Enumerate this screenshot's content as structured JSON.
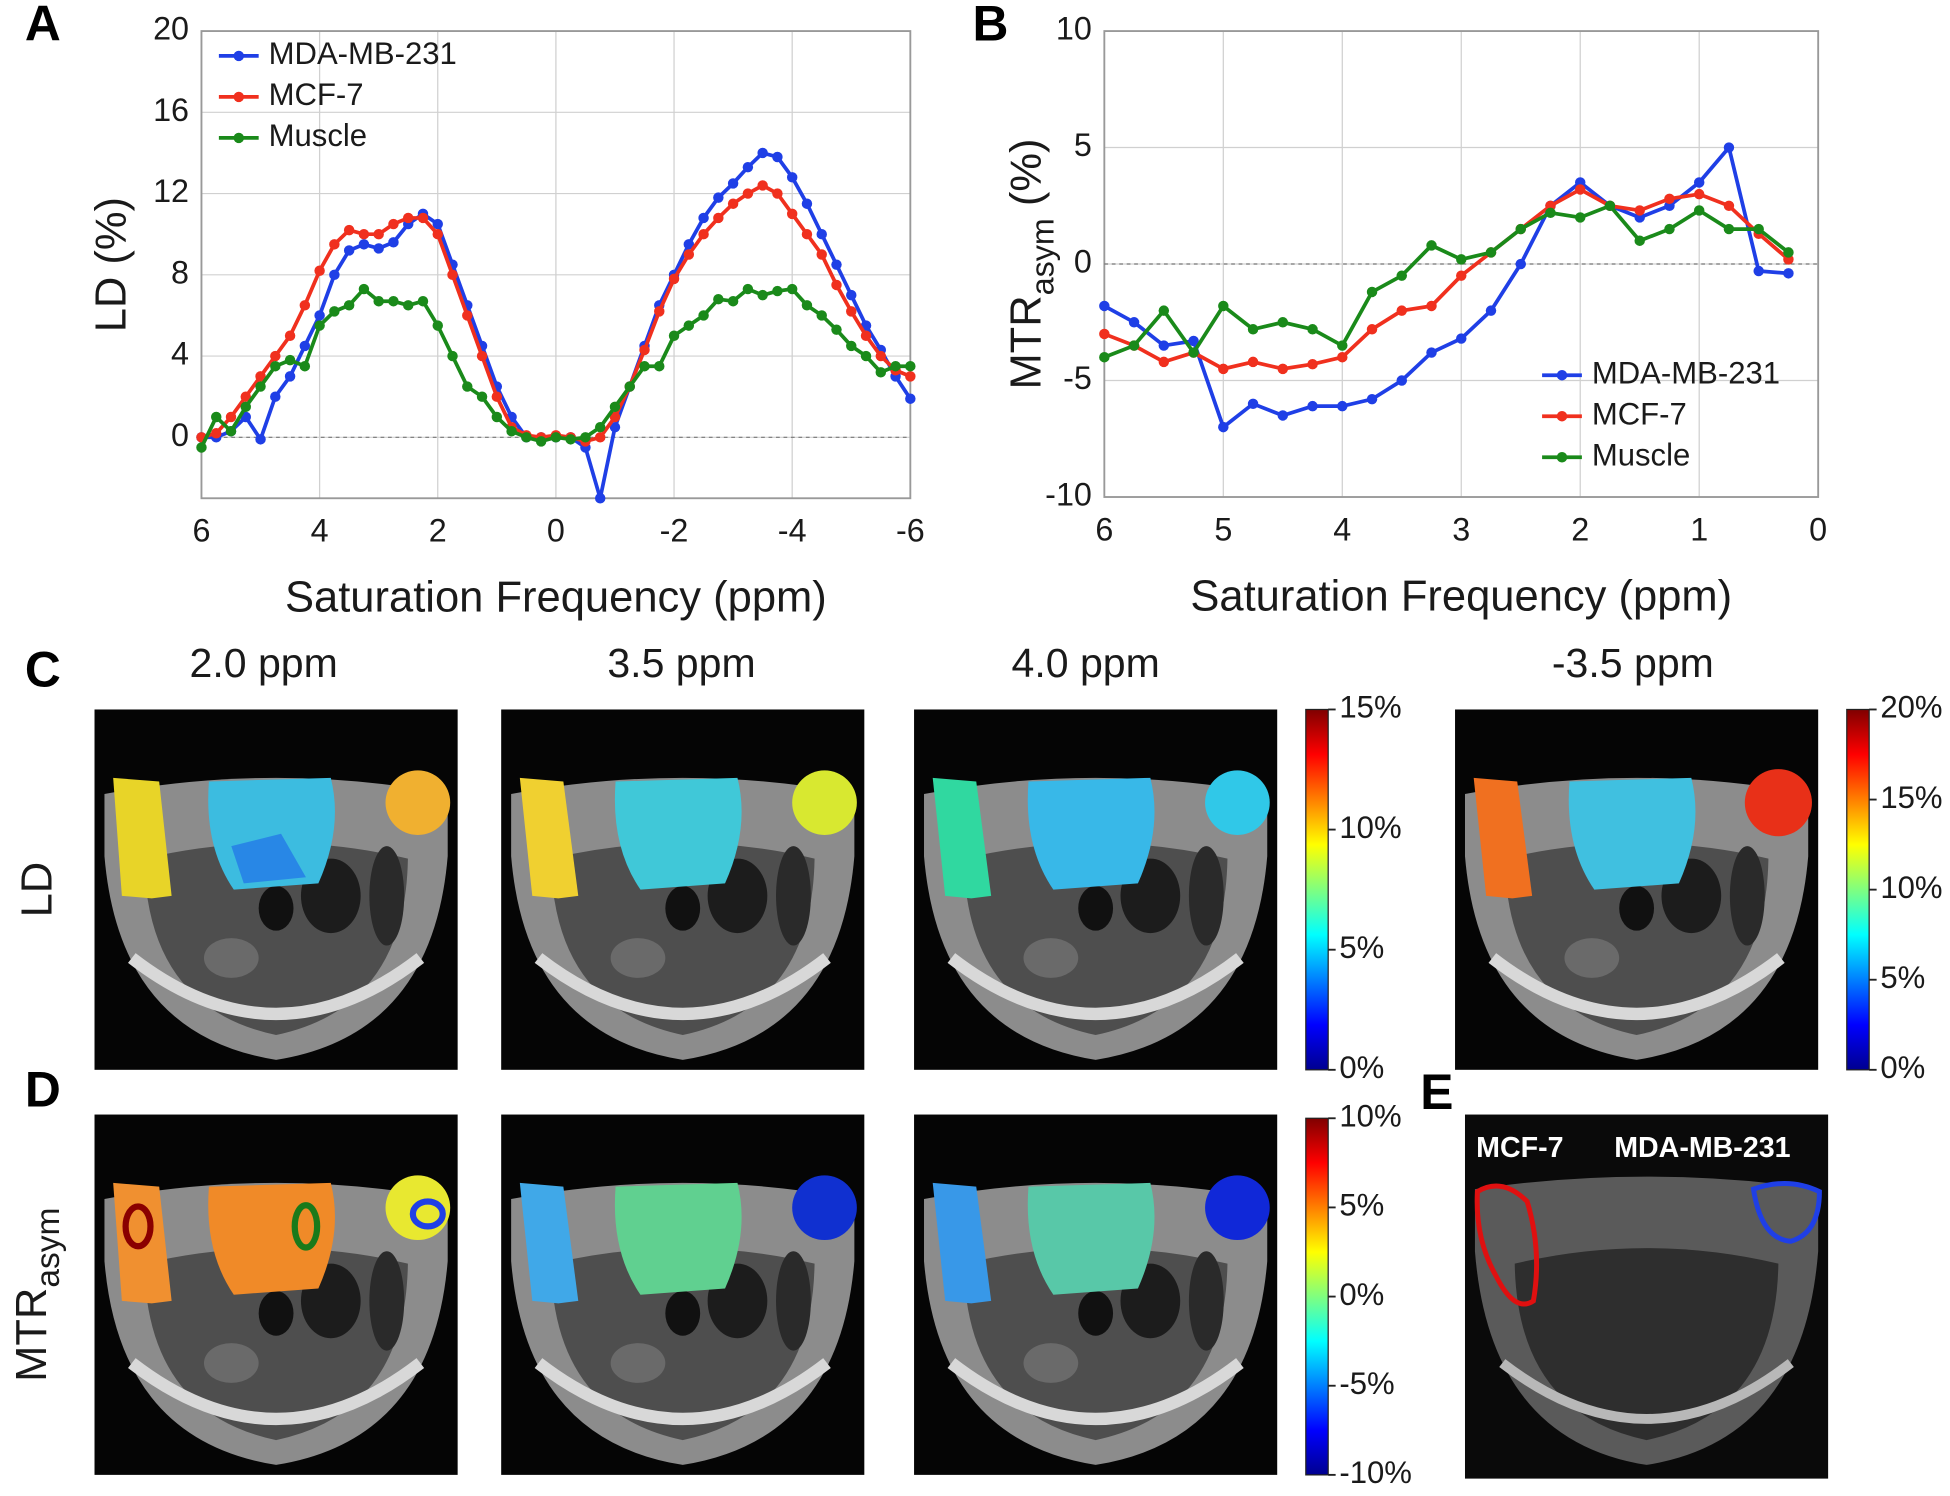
{
  "panel_labels": [
    "A",
    "B",
    "C",
    "D",
    "E"
  ],
  "chart_data": [
    {
      "type": "line",
      "xlabel": "Saturation Frequency (ppm)",
      "ylabel": "LD (%)",
      "xlim": [
        6,
        -6
      ],
      "xticks": [
        6,
        4,
        2,
        0,
        -2,
        -4,
        -6
      ],
      "ylim": [
        -3,
        20
      ],
      "yticks": [
        0,
        4,
        8,
        12,
        16,
        20
      ],
      "grid": true,
      "legend": "upper left",
      "x": [
        6,
        5.75,
        5.5,
        5.25,
        5,
        4.75,
        4.5,
        4.25,
        4,
        3.75,
        3.5,
        3.25,
        3,
        2.75,
        2.5,
        2.25,
        2,
        1.75,
        1.5,
        1.25,
        1,
        0.75,
        0.5,
        0.25,
        0,
        -0.25,
        -0.5,
        -0.75,
        -1,
        -1.25,
        -1.5,
        -1.75,
        -2,
        -2.25,
        -2.5,
        -2.75,
        -3,
        -3.25,
        -3.5,
        -3.75,
        -4,
        -4.25,
        -4.5,
        -4.75,
        -5,
        -5.25,
        -5.5,
        -5.75,
        -6
      ],
      "series": [
        {
          "name": "MDA-MB-231",
          "color": "#1f3fe6",
          "values": [
            0,
            0,
            0.3,
            1,
            -0.1,
            2,
            3,
            4.5,
            6,
            8,
            9.2,
            9.5,
            9.3,
            9.6,
            10.5,
            11,
            10.5,
            8.5,
            6.5,
            4.5,
            2.5,
            1,
            0,
            0,
            0,
            0,
            -0.5,
            -3,
            0.5,
            2.5,
            4.5,
            6.5,
            8,
            9.5,
            10.8,
            11.8,
            12.5,
            13.3,
            14,
            13.8,
            12.8,
            11.5,
            10,
            8.5,
            7,
            5.5,
            4.3,
            3,
            1.9
          ]
        },
        {
          "name": "MCF-7",
          "color": "#f0301e",
          "values": [
            0,
            0.2,
            1,
            2,
            3,
            4,
            5,
            6.5,
            8.2,
            9.5,
            10.2,
            10,
            10,
            10.5,
            10.8,
            10.8,
            10,
            8,
            6,
            4,
            2,
            0.5,
            0.1,
            0,
            0.1,
            0,
            -0.2,
            0,
            1,
            2.5,
            4.3,
            6.2,
            7.8,
            9,
            10,
            10.8,
            11.5,
            12,
            12.4,
            12,
            11,
            10,
            9,
            7.5,
            6.2,
            5,
            4,
            3.3,
            3
          ]
        },
        {
          "name": "Muscle",
          "color": "#1a8a1a",
          "values": [
            -0.5,
            1,
            0.3,
            1.5,
            2.5,
            3.5,
            3.8,
            3.5,
            5.5,
            6.2,
            6.5,
            7.3,
            6.7,
            6.7,
            6.5,
            6.7,
            5.5,
            4,
            2.5,
            2,
            1,
            0.3,
            0,
            -0.2,
            0,
            -0.1,
            0,
            0.5,
            1.5,
            2.5,
            3.5,
            3.5,
            5,
            5.5,
            6,
            6.8,
            6.7,
            7.3,
            7,
            7.2,
            7.3,
            6.5,
            6,
            5.3,
            4.5,
            4,
            3.2,
            3.5,
            3.5
          ]
        }
      ]
    },
    {
      "type": "line",
      "xlabel": "Saturation Frequency (ppm)",
      "ylabel": "MTR",
      "ylabel_subscript": "asym",
      "ylabel_suffix": " (%)",
      "xlim": [
        6,
        0
      ],
      "xticks": [
        6,
        5,
        4,
        3,
        2,
        1,
        0
      ],
      "ylim": [
        -10,
        10
      ],
      "yticks": [
        -10,
        -5,
        0,
        5,
        10
      ],
      "grid": true,
      "legend": "lower right",
      "x": [
        6,
        5.75,
        5.5,
        5.25,
        5,
        4.75,
        4.5,
        4.25,
        4,
        3.75,
        3.5,
        3.25,
        3,
        2.75,
        2.5,
        2.25,
        2,
        1.75,
        1.5,
        1.25,
        1,
        0.75,
        0.5,
        0.25
      ],
      "series": [
        {
          "name": "MDA-MB-231",
          "color": "#1f3fe6",
          "values": [
            -1.8,
            -2.5,
            -3.5,
            -3.3,
            -7,
            -6,
            -6.5,
            -6.1,
            -6.1,
            -5.8,
            -5,
            -3.8,
            -3.2,
            -2,
            0,
            2.5,
            3.5,
            2.5,
            2,
            2.5,
            3.5,
            5,
            -0.3,
            -0.4
          ]
        },
        {
          "name": "MCF-7",
          "color": "#f0301e",
          "values": [
            -3,
            -3.5,
            -4.2,
            -3.8,
            -4.5,
            -4.2,
            -4.5,
            -4.3,
            -4,
            -2.8,
            -2,
            -1.8,
            -0.5,
            0.5,
            1.5,
            2.5,
            3.2,
            2.5,
            2.3,
            2.8,
            3,
            2.5,
            1.3,
            0.2
          ]
        },
        {
          "name": "Muscle",
          "color": "#1a8a1a",
          "values": [
            -4,
            -3.5,
            -2,
            -3.8,
            -1.8,
            -2.8,
            -2.5,
            -2.8,
            -3.5,
            -1.2,
            -0.5,
            0.8,
            0.2,
            0.5,
            1.5,
            2.2,
            2,
            2.5,
            1,
            1.5,
            2.3,
            1.5,
            1.5,
            0.5
          ]
        }
      ]
    }
  ],
  "image_grid": {
    "columns": [
      "2.0 ppm",
      "3.5 ppm",
      "4.0 ppm",
      "-3.5 ppm"
    ],
    "rows": [
      {
        "text": "LD"
      },
      {
        "text": "MTR",
        "subscript": "asym"
      }
    ]
  },
  "colorbars": [
    {
      "lim": [
        0,
        15
      ],
      "ticks": [
        {
          "value": 0,
          "label": "0%"
        },
        {
          "value": 5,
          "label": "5%"
        },
        {
          "value": 10,
          "label": "10%"
        },
        {
          "value": 15,
          "label": "15%"
        }
      ]
    },
    {
      "lim": [
        0,
        20
      ],
      "ticks": [
        {
          "value": 0,
          "label": "0%"
        },
        {
          "value": 5,
          "label": "5%"
        },
        {
          "value": 10,
          "label": "10%"
        },
        {
          "value": 15,
          "label": "15%"
        },
        {
          "value": 20,
          "label": "20%"
        }
      ]
    },
    {
      "lim": [
        -10,
        10
      ],
      "ticks": [
        {
          "value": -10,
          "label": "-10%"
        },
        {
          "value": -5,
          "label": "-5%"
        },
        {
          "value": 0,
          "label": "0%"
        },
        {
          "value": 5,
          "label": "5%"
        },
        {
          "value": 10,
          "label": "10%"
        }
      ]
    }
  ],
  "panel_e": {
    "labels": [
      "MCF-7",
      "MDA-MB-231"
    ]
  }
}
